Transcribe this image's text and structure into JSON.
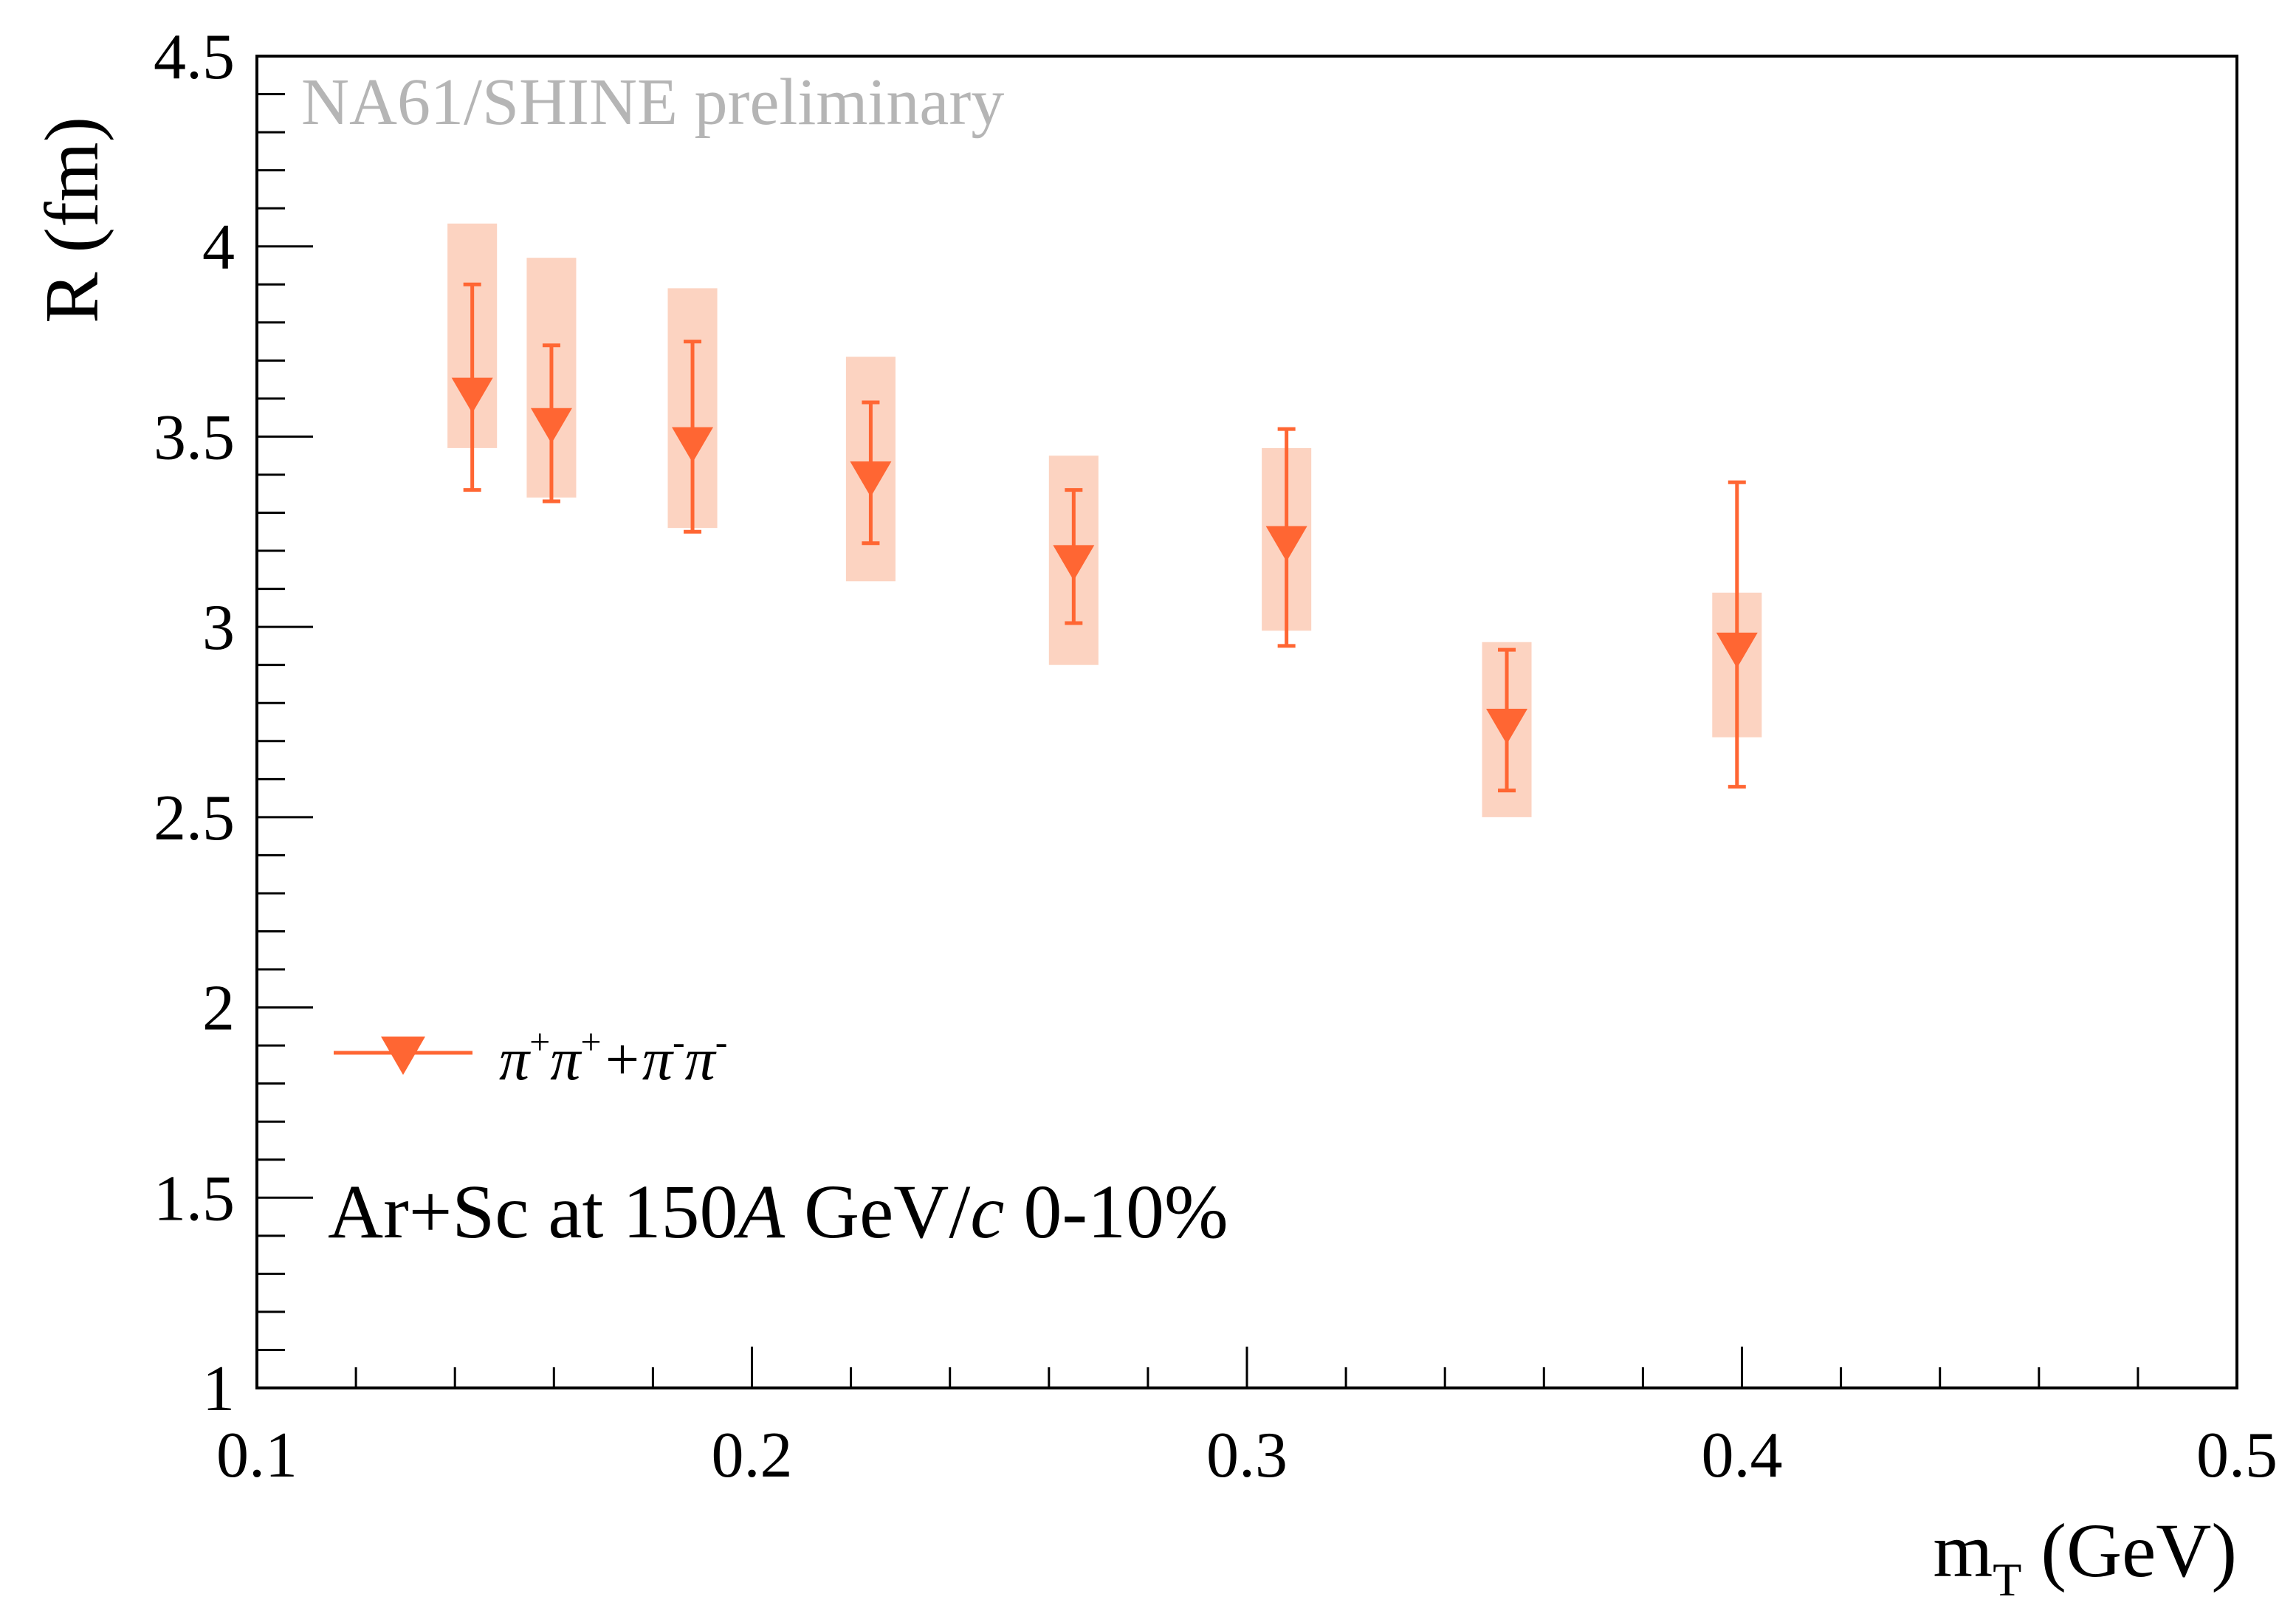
{
  "chart_data": {
    "type": "scatter",
    "title": "",
    "watermark": "NA61/SHINE preliminary",
    "xlabel": {
      "main": "m",
      "sub": "T",
      "unit": " (GeV)"
    },
    "ylabel": "R (fm)",
    "xlim": [
      0.1,
      0.5
    ],
    "ylim": [
      1,
      4.5
    ],
    "x_major_ticks": [
      0.1,
      0.2,
      0.3,
      0.4,
      0.5
    ],
    "x_tick_labels": [
      "0.1",
      "0.2",
      "0.3",
      "0.4",
      "0.5"
    ],
    "x_minor_step": 0.02,
    "y_major_ticks": [
      1,
      1.5,
      2,
      2.5,
      3,
      3.5,
      4,
      4.5
    ],
    "y_tick_labels": [
      "1",
      "1.5",
      "2",
      "2.5",
      "3",
      "3.5",
      "4",
      "4.5"
    ],
    "y_minor_step": 0.1,
    "grid": false,
    "series": [
      {
        "name": "π⁺π⁺+π⁻π⁻",
        "legend_parts": [
          "π",
          "+",
          "π",
          "+",
          "+π",
          "-",
          "π",
          "-"
        ],
        "marker": "triangle-down",
        "color": "#ff6633",
        "sys_color": "#fcd3c1",
        "sys_half_width": 0.005,
        "points": [
          {
            "x": 0.1435,
            "y": 3.62,
            "stat_lo": 3.36,
            "stat_hi": 3.9,
            "sys_lo": 3.47,
            "sys_hi": 4.06
          },
          {
            "x": 0.1595,
            "y": 3.54,
            "stat_lo": 3.33,
            "stat_hi": 3.74,
            "sys_lo": 3.34,
            "sys_hi": 3.97
          },
          {
            "x": 0.188,
            "y": 3.49,
            "stat_lo": 3.25,
            "stat_hi": 3.75,
            "sys_lo": 3.26,
            "sys_hi": 3.89
          },
          {
            "x": 0.224,
            "y": 3.4,
            "stat_lo": 3.22,
            "stat_hi": 3.59,
            "sys_lo": 3.12,
            "sys_hi": 3.71
          },
          {
            "x": 0.265,
            "y": 3.18,
            "stat_lo": 3.01,
            "stat_hi": 3.36,
            "sys_lo": 2.9,
            "sys_hi": 3.45
          },
          {
            "x": 0.308,
            "y": 3.23,
            "stat_lo": 2.95,
            "stat_hi": 3.52,
            "sys_lo": 2.99,
            "sys_hi": 3.47
          },
          {
            "x": 0.3525,
            "y": 2.75,
            "stat_lo": 2.57,
            "stat_hi": 2.94,
            "sys_lo": 2.5,
            "sys_hi": 2.96
          },
          {
            "x": 0.399,
            "y": 2.95,
            "stat_lo": 2.58,
            "stat_hi": 3.38,
            "sys_lo": 2.71,
            "sys_hi": 3.09
          }
        ]
      }
    ],
    "legend_position": "left",
    "annotation": {
      "parts": [
        "Ar+Sc at 150",
        "A",
        " GeV/",
        "c",
        " 0-10%"
      ]
    }
  }
}
